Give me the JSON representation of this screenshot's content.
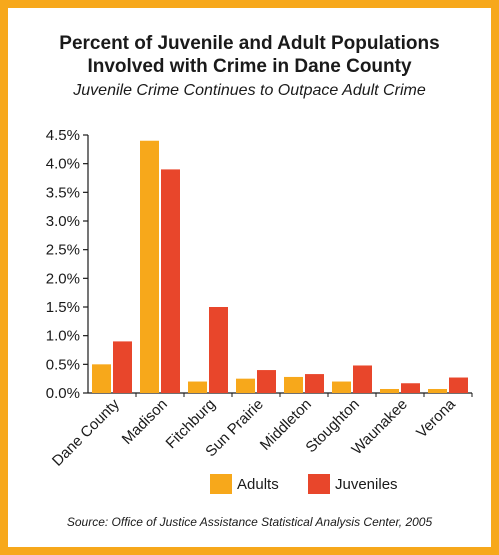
{
  "chart_data": {
    "type": "bar",
    "title_line1": "Percent of Juvenile and Adult Populations",
    "title_line2": "Involved with Crime in Dane County",
    "subtitle": "Juvenile Crime Continues to Outpace Adult Crime",
    "source": "Source: Office of Justice Assistance Statistical Analysis Center, 2005",
    "categories": [
      "Dane County",
      "Madison",
      "Fitchburg",
      "Sun Prairie",
      "Middleton",
      "Stoughton",
      "Waunakee",
      "Verona"
    ],
    "series": [
      {
        "name": "Adults",
        "color": "#f7a81b",
        "values": [
          0.5,
          4.4,
          0.2,
          0.25,
          0.28,
          0.2,
          0.07,
          0.07
        ]
      },
      {
        "name": "Juveniles",
        "color": "#e8462b",
        "values": [
          0.9,
          3.9,
          1.5,
          0.4,
          0.33,
          0.48,
          0.17,
          0.27
        ]
      }
    ],
    "y_ticks": [
      "0.0%",
      "0.5%",
      "1.0%",
      "1.5%",
      "2.0%",
      "2.5%",
      "3.0%",
      "3.5%",
      "4.0%",
      "4.5%"
    ],
    "ylim": [
      0,
      4.5
    ],
    "grid": false,
    "legend_placement": "bottom"
  }
}
